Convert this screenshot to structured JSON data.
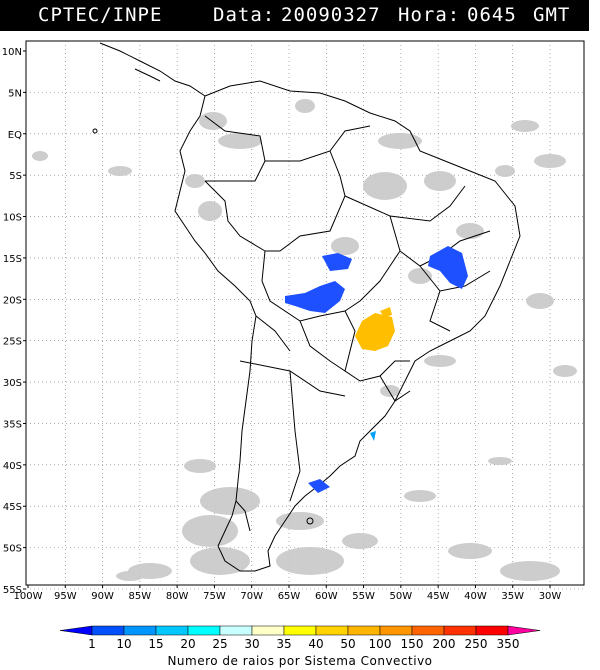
{
  "header": {
    "source": "CPTEC/INPE",
    "date_label": "Data:",
    "date": "20090327",
    "time_label": "Hora:",
    "time": "0645",
    "tz": "GMT"
  },
  "map": {
    "lat_labels": [
      "10N",
      "5N",
      "EQ",
      "5S",
      "10S",
      "15S",
      "20S",
      "25S",
      "30S",
      "35S",
      "40S",
      "45S",
      "50S",
      "55S"
    ],
    "lon_labels": [
      "100W",
      "95W",
      "90W",
      "85W",
      "80W",
      "75W",
      "70W",
      "65W",
      "60W",
      "55W",
      "50W",
      "45W",
      "40W",
      "35W",
      "30W"
    ],
    "lat_range": [
      10,
      -55
    ],
    "lon_range": [
      -100,
      -30
    ],
    "grid": "dotted"
  },
  "colorbar": {
    "caption": "Numero de raios por Sistema Convectivo",
    "ticks": [
      "1",
      "10",
      "15",
      "20",
      "25",
      "30",
      "35",
      "40",
      "50",
      "100",
      "150",
      "200",
      "250",
      "350"
    ],
    "colors": [
      "#0000ff",
      "#0050ff",
      "#0096ff",
      "#00c8ff",
      "#00ffff",
      "#c8ffff",
      "#ffffc8",
      "#ffff00",
      "#ffd200",
      "#ffb400",
      "#ff9600",
      "#ff6400",
      "#ff3200",
      "#ff0000",
      "#ff00a0"
    ]
  },
  "colors": {
    "cloud": "#c8c8c8",
    "blue_cell": "#1e50ff",
    "yellow_cell": "#ffbe00"
  }
}
